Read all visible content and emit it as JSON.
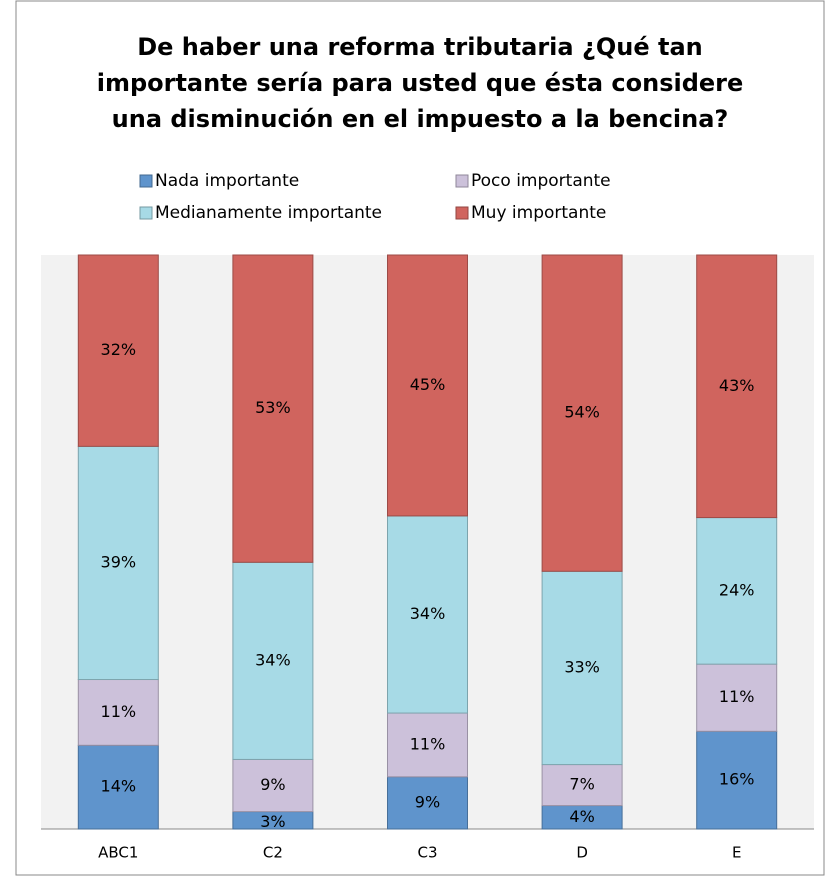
{
  "chart_data": {
    "type": "stacked_percent_bar",
    "title": [
      "De haber una reforma tributaria ¿Qué tan",
      "importante sería para usted que ésta considere",
      "una disminución en el impuesto a la bencina?"
    ],
    "categories": [
      "ABC1",
      "C2",
      "C3",
      "D",
      "E"
    ],
    "series": [
      {
        "name": "Nada importante",
        "color": "#5f94cc",
        "values": [
          14,
          3,
          9,
          4,
          16
        ],
        "value_labels": [
          "14%",
          "3%",
          "9%",
          "4%",
          "16%"
        ]
      },
      {
        "name": "Poco importante",
        "color": "#ccc1da",
        "values": [
          11,
          9,
          11,
          7,
          11
        ],
        "value_labels": [
          "11%",
          "9%",
          "11%",
          "7%",
          "11%"
        ]
      },
      {
        "name": "Medianamente importante",
        "color": "#a7dae6",
        "values": [
          39,
          34,
          34,
          33,
          24
        ],
        "value_labels": [
          "39%",
          "34%",
          "34%",
          "33%",
          "24%"
        ]
      },
      {
        "name": "Muy importante",
        "color": "#d0645e",
        "values": [
          32,
          53,
          45,
          54,
          43
        ],
        "value_labels": [
          "32%",
          "53%",
          "45%",
          "54%",
          "43%"
        ]
      }
    ]
  }
}
